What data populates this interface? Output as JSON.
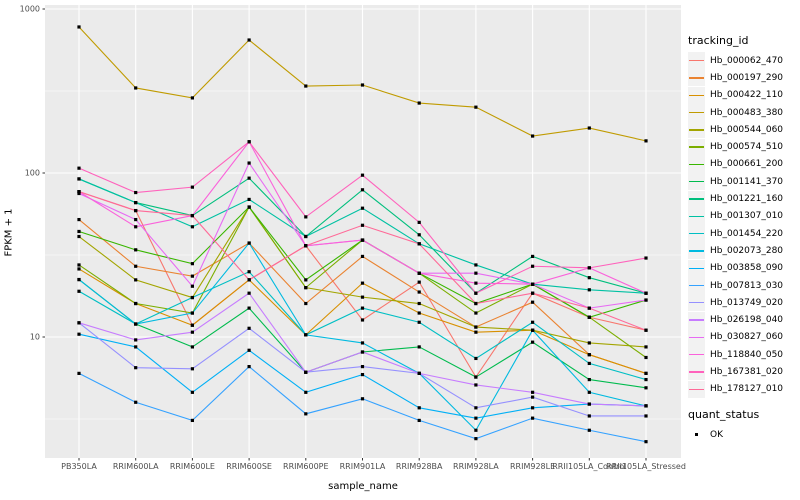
{
  "figure": {
    "y_axis": {
      "title": "FPKM + 1",
      "tick_labels": [
        "1000",
        "100",
        "10"
      ]
    },
    "x_axis": {
      "title": "sample_name"
    },
    "legend": {
      "tracking_title": "tracking_id",
      "quant_title": "quant_status",
      "quant_items": [
        {
          "label": "OK",
          "marker": "filled-black-square"
        }
      ]
    }
  },
  "colors": {
    "panel_bg": "#EBEBEB",
    "gridline": "#FFFFFF",
    "legend_key_bg": "#F2F2F2",
    "tick_text": "#4D4D4D",
    "point": "#000000"
  },
  "chart_data": {
    "type": "line",
    "title": "",
    "xlabel": "sample_name",
    "ylabel": "FPKM + 1",
    "y_scale": "log10",
    "ylim": [
      1,
      1000
    ],
    "grid": true,
    "legend_position": "right",
    "point_shape": "filled-square-black",
    "y_gridlines": [
      1000,
      100,
      10
    ],
    "y_minor_gridlines": [
      316.2,
      31.62,
      3.162
    ],
    "categories": [
      "PB350LA",
      "RRIM600LA",
      "RRIM600LE",
      "RRIM600SE",
      "RRIM600PE",
      "RRIM901LA",
      "RRIM928BA",
      "RRIM928LA",
      "RRIM928LE",
      "RRII105LA_Control",
      "RRII105LA_Stressed"
    ],
    "series": [
      {
        "name": "Hb_000062_470",
        "color": "#F8766D",
        "quant_status": "OK",
        "values": [
          77,
          59,
          11.8,
          22.3,
          36,
          12.7,
          21.6,
          5.7,
          18.5,
          13.2,
          11
        ]
      },
      {
        "name": "Hb_000197_290",
        "color": "#EA8331",
        "quant_status": "OK",
        "values": [
          52,
          27,
          23.5,
          37.4,
          16,
          31,
          18.8,
          11.5,
          16.3,
          7.8,
          6.0
        ]
      },
      {
        "name": "Hb_000422_110",
        "color": "#D89000",
        "quant_status": "OK",
        "values": [
          26,
          16,
          11.8,
          22.3,
          10.3,
          21.3,
          14,
          10.7,
          11,
          7.8,
          6.0
        ]
      },
      {
        "name": "Hb_000483_380",
        "color": "#C09B00",
        "quant_status": "OK",
        "values": [
          777,
          330,
          287,
          647,
          339,
          344,
          267,
          252,
          168,
          188,
          157
        ]
      },
      {
        "name": "Hb_000544_060",
        "color": "#A3A500",
        "quant_status": "OK",
        "values": [
          41,
          22.3,
          17.4,
          62,
          20,
          17.5,
          16,
          11.5,
          11,
          9.2,
          8.7
        ]
      },
      {
        "name": "Hb_000574_510",
        "color": "#7CAE00",
        "quant_status": "OK",
        "values": [
          27.5,
          16,
          14,
          62,
          20,
          39,
          24.5,
          14,
          21,
          13.2,
          7.5
        ]
      },
      {
        "name": "Hb_000661_200",
        "color": "#39B600",
        "quant_status": "OK",
        "values": [
          44,
          34,
          28,
          62,
          22.3,
          39,
          24.5,
          16,
          21,
          13.2,
          16.8
        ]
      },
      {
        "name": "Hb_001141_370",
        "color": "#00BB4E",
        "quant_status": "OK",
        "values": [
          22.4,
          12,
          8.7,
          15,
          6.1,
          8.1,
          8.7,
          5.7,
          9.3,
          5.5,
          4.9
        ]
      },
      {
        "name": "Hb_001221_160",
        "color": "#00BF7D",
        "quant_status": "OK",
        "values": [
          92,
          66,
          55,
          93,
          41,
          79,
          42,
          18.5,
          31,
          23,
          18.5
        ]
      },
      {
        "name": "Hb_001307_010",
        "color": "#00C1A3",
        "quant_status": "OK",
        "values": [
          92,
          66,
          47,
          69,
          41,
          61,
          37,
          27.5,
          21,
          19.4,
          18.5
        ]
      },
      {
        "name": "Hb_001454_220",
        "color": "#00BFC4",
        "quant_status": "OK",
        "values": [
          19,
          12,
          17.4,
          25,
          10.3,
          15,
          12.3,
          7.4,
          12.3,
          6.9,
          5.5
        ]
      },
      {
        "name": "Hb_002073_280",
        "color": "#00BAE0",
        "quant_status": "OK",
        "values": [
          22.4,
          12,
          14,
          37.4,
          10.3,
          9.2,
          6.0,
          2.7,
          11,
          4.6,
          3.8
        ]
      },
      {
        "name": "Hb_003858_090",
        "color": "#00B0F6",
        "quant_status": "OK",
        "values": [
          10.4,
          8.7,
          4.6,
          8.3,
          4.6,
          5.9,
          3.7,
          3.2,
          3.7,
          3.9,
          3.8
        ]
      },
      {
        "name": "Hb_007813_030",
        "color": "#35A2FF",
        "quant_status": "OK",
        "values": [
          6.0,
          4.0,
          3.1,
          6.6,
          3.4,
          4.2,
          3.1,
          2.4,
          3.2,
          2.7,
          2.3
        ]
      },
      {
        "name": "Hb_013749_020",
        "color": "#9590FF",
        "quant_status": "OK",
        "values": [
          12.2,
          6.5,
          6.4,
          11.3,
          6.1,
          6.6,
          6.0,
          3.7,
          4.3,
          3.3,
          3.3
        ]
      },
      {
        "name": "Hb_026198_040",
        "color": "#C77CFF",
        "quant_status": "OK",
        "values": [
          12.2,
          9.6,
          10.7,
          18.5,
          6.1,
          8.1,
          6.0,
          5.1,
          4.6,
          3.9,
          3.8
        ]
      },
      {
        "name": "Hb_030827_060",
        "color": "#E76BF3",
        "quant_status": "OK",
        "values": [
          75,
          52,
          20.4,
          115,
          36,
          39,
          24.5,
          24.5,
          21,
          15,
          16.8
        ]
      },
      {
        "name": "Hb_118840_050",
        "color": "#FA62DB",
        "quant_status": "OK",
        "values": [
          77,
          47,
          55,
          155,
          36,
          39,
          24.5,
          21.3,
          21,
          26.4,
          18.5
        ]
      },
      {
        "name": "Hb_167381_020",
        "color": "#FF62BC",
        "quant_status": "OK",
        "values": [
          107,
          76,
          82,
          155,
          54,
          97,
          50,
          18.5,
          27,
          26.4,
          30.3
        ]
      },
      {
        "name": "Hb_178127_010",
        "color": "#FF6A98",
        "quant_status": "OK",
        "values": [
          77,
          59,
          55,
          22.3,
          36,
          48,
          37,
          16,
          18.5,
          15,
          11
        ]
      }
    ]
  }
}
